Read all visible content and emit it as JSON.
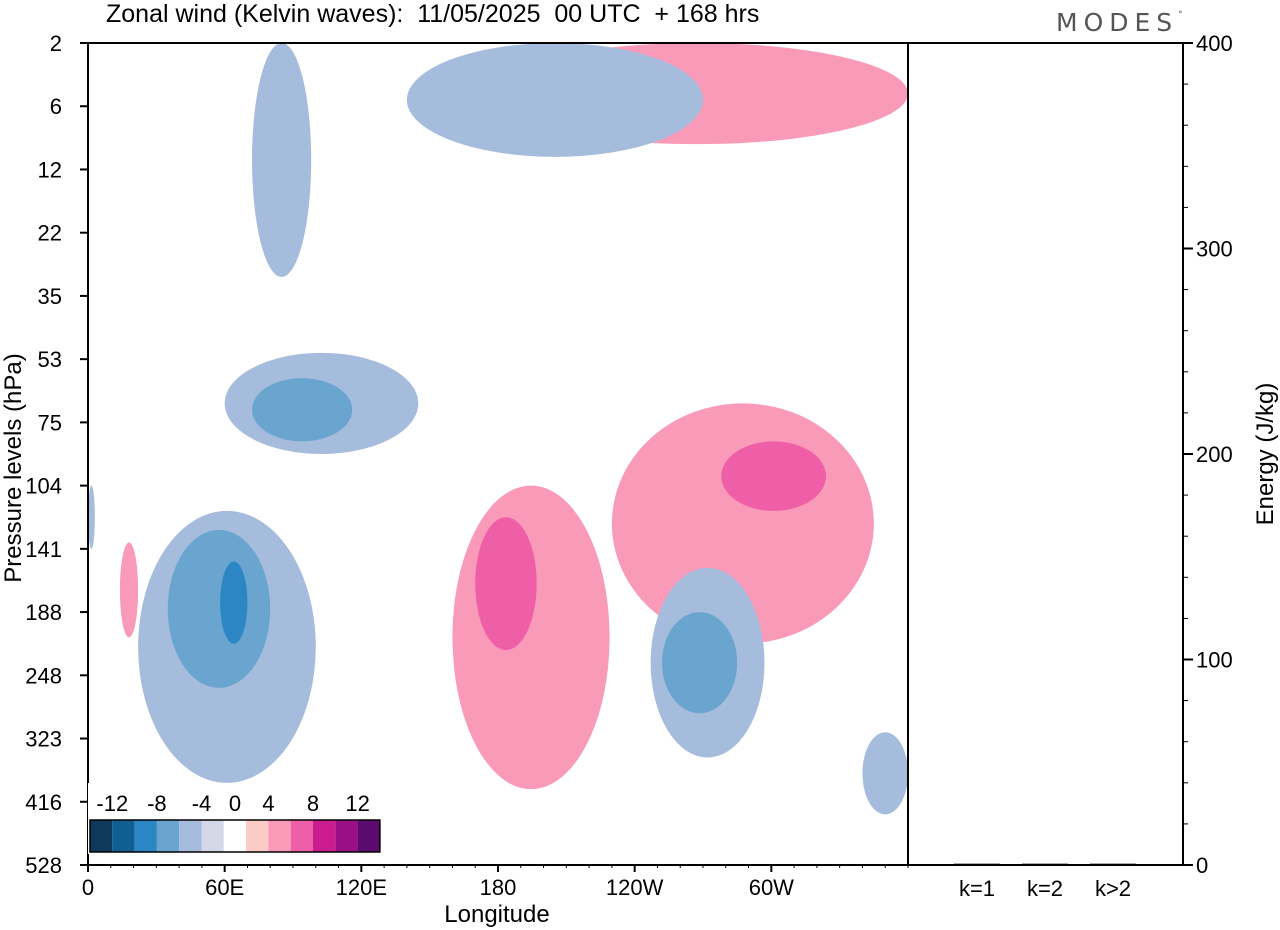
{
  "title": "Zonal wind (Kelvin waves):  11/05/2025  00 UTC  + 168 hrs",
  "brand": "MODES",
  "brand_mark": "°",
  "chart_data": [
    {
      "type": "heatmap",
      "title": "Zonal wind (Kelvin waves):  11/05/2025  00 UTC  + 168 hrs",
      "xlabel": "Longitude",
      "ylabel": "Pressure levels (hPa)",
      "x_ticks": [
        "0",
        "60E",
        "120E",
        "180",
        "120W",
        "60W"
      ],
      "x_tick_degrees": [
        0,
        60,
        120,
        180,
        240,
        300
      ],
      "xlim": [
        0,
        360
      ],
      "y_ticks": [
        "2",
        "6",
        "12",
        "22",
        "35",
        "53",
        "75",
        "104",
        "141",
        "188",
        "248",
        "323",
        "416",
        "528"
      ],
      "y_axis": "level index (top = 2 hPa, bottom = 528 hPa)",
      "colorbar_labels": [
        "-12",
        "-8",
        "-4",
        "0",
        "4",
        "8",
        "12"
      ],
      "colorbar_colors": [
        "#0d3a5c",
        "#0f5f95",
        "#2c86c3",
        "#6aa5d0",
        "#a6bcdd",
        "#d4d7e8",
        "#ffffff",
        "#fbcbc8",
        "#f99bb8",
        "#ef5fa7",
        "#cc1b8f",
        "#9a0f85",
        "#5b0a6f"
      ],
      "regions": [
        {
          "lon": [
            14,
            22
          ],
          "level": [
            7.9,
            9.4
          ],
          "value": 2.5
        },
        {
          "lon": [
            0,
            3
          ],
          "level": [
            7.0,
            8.0
          ],
          "value": -2.5
        },
        {
          "lon": [
            22,
            100
          ],
          "level": [
            7.4,
            11.7
          ],
          "value": -2.5
        },
        {
          "lon": [
            35,
            80
          ],
          "level": [
            7.7,
            10.2
          ],
          "value": -5
        },
        {
          "lon": [
            58,
            70
          ],
          "level": [
            8.2,
            9.5
          ],
          "value": -8
        },
        {
          "lon": [
            72,
            98
          ],
          "level": [
            0.0,
            3.7
          ],
          "value": -2.5
        },
        {
          "lon": [
            60,
            145
          ],
          "level": [
            4.9,
            6.5
          ],
          "value": -2.5
        },
        {
          "lon": [
            72,
            116
          ],
          "level": [
            5.3,
            6.3
          ],
          "value": -5
        },
        {
          "lon": [
            160,
            229
          ],
          "level": [
            7.0,
            11.8
          ],
          "value": 2.5
        },
        {
          "lon": [
            170,
            197
          ],
          "level": [
            7.5,
            9.6
          ],
          "value": 5
        },
        {
          "lon": [
            230,
            345
          ],
          "level": [
            5.7,
            9.5
          ],
          "value": 2.5
        },
        {
          "lon": [
            278,
            324
          ],
          "level": [
            6.3,
            7.4
          ],
          "value": 5
        },
        {
          "lon": [
            247,
            297
          ],
          "level": [
            8.3,
            11.3
          ],
          "value": -2.5
        },
        {
          "lon": [
            252,
            285
          ],
          "level": [
            9.0,
            10.6
          ],
          "value": -5
        },
        {
          "lon": [
            340,
            360
          ],
          "level": [
            10.9,
            12.2
          ],
          "value": -2.5
        },
        {
          "lon": [
            175,
            360
          ],
          "level": [
            0.0,
            1.6
          ],
          "value": 2.5
        },
        {
          "lon": [
            140,
            270
          ],
          "level": [
            0.0,
            1.8
          ],
          "value": -2.5
        }
      ]
    },
    {
      "type": "bar",
      "categories": [
        "k=1",
        "k=2",
        "k>2"
      ],
      "values": [
        0,
        0,
        0
      ],
      "ylabel": "Energy (J/kg)",
      "ylim": [
        0,
        400
      ],
      "y_ticks": [
        "0",
        "100",
        "200",
        "300",
        "400"
      ]
    }
  ]
}
